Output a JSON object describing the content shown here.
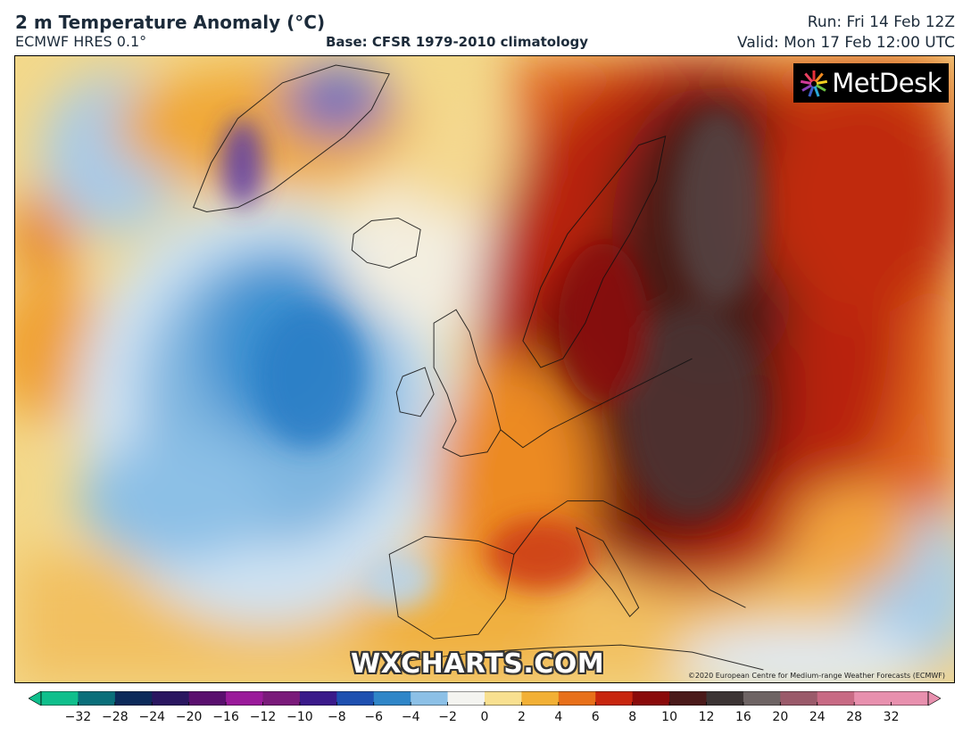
{
  "header": {
    "title": "2 m Temperature Anomaly (°C)",
    "model": "ECMWF HRES 0.1°",
    "base": "Base: CFSR 1979-2010 climatology",
    "run": "Run: Fri 14 Feb 12Z",
    "valid": "Valid: Mon 17 Feb 12:00 UTC"
  },
  "map": {
    "logo_text": "MetDesk",
    "watermark": "WXCHARTS.COM",
    "copyright": "©2020 European Centre for Medium-range Weather Forecasts (ECMWF)"
  },
  "legend": {
    "unit": "°C",
    "ticks": [
      "−32",
      "−28",
      "−24",
      "−20",
      "−16",
      "−12",
      "−10",
      "−8",
      "−6",
      "−4",
      "−2",
      "0",
      "2",
      "4",
      "6",
      "8",
      "10",
      "12",
      "16",
      "20",
      "24",
      "28",
      "32"
    ],
    "colors": [
      "#0fbf8c",
      "#0a6f7a",
      "#0c2a5a",
      "#2a1660",
      "#5a0f6e",
      "#9a1a9a",
      "#7a1a7a",
      "#3a1a8a",
      "#1e50b0",
      "#2f86c8",
      "#8cc0e6",
      "#f4f4f0",
      "#f8e090",
      "#f2b035",
      "#e8701a",
      "#c8260e",
      "#8a0a0a",
      "#4a1a1a",
      "#3c3434",
      "#6e6464",
      "#9a5a6a",
      "#c86a84",
      "#e890ae"
    ]
  }
}
